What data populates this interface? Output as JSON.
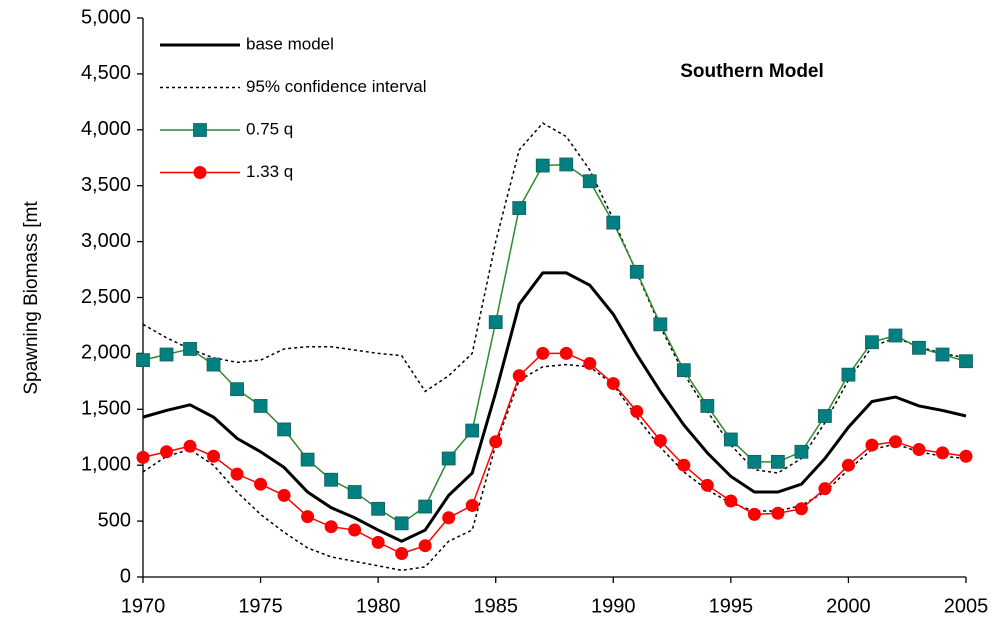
{
  "chart_data": {
    "type": "line",
    "title": "Southern Model",
    "y_label": "Spawning Biomass [mt",
    "x": [
      1970,
      1971,
      1972,
      1973,
      1974,
      1975,
      1976,
      1977,
      1978,
      1979,
      1980,
      1981,
      1982,
      1983,
      1984,
      1985,
      1986,
      1987,
      1988,
      1989,
      1990,
      1991,
      1992,
      1993,
      1994,
      1995,
      1996,
      1997,
      1998,
      1999,
      2000,
      2001,
      2002,
      2003,
      2004,
      2005
    ],
    "xlim": [
      1970,
      2005
    ],
    "xticks": [
      1970,
      1975,
      1980,
      1985,
      1990,
      1995,
      2000,
      2005
    ],
    "ylim": [
      0,
      5000
    ],
    "yticks": [
      0,
      500,
      {
        "value": 1000,
        "label": "1,000"
      },
      {
        "value": 1500,
        "label": "1,500"
      },
      {
        "value": 2000,
        "label": "2,000"
      },
      {
        "value": 2500,
        "label": "2,500"
      },
      {
        "value": 3000,
        "label": "3,000"
      },
      {
        "value": 3500,
        "label": "3,500"
      },
      {
        "value": 4000,
        "label": "4,000"
      },
      {
        "value": 4500,
        "label": "4,500"
      },
      {
        "value": 5000,
        "label": "5,000"
      }
    ],
    "legend": "upper left",
    "series": [
      {
        "name": "base model",
        "color": "#000000",
        "style": "solid",
        "marker": "none",
        "values": [
          1430,
          1490,
          1540,
          1430,
          1240,
          1120,
          980,
          760,
          620,
          530,
          420,
          320,
          420,
          730,
          930,
          1650,
          2440,
          2720,
          2720,
          2610,
          2350,
          1990,
          1660,
          1360,
          1110,
          900,
          760,
          760,
          830,
          1060,
          1340,
          1570,
          1610,
          1530,
          1490,
          1440
        ]
      },
      {
        "name": "95% confidence interval",
        "color": "#000000",
        "style": "dotted",
        "marker": "none",
        "high": [
          2260,
          2140,
          2040,
          1960,
          1920,
          1940,
          2040,
          2060,
          2060,
          2030,
          2000,
          1980,
          1660,
          1800,
          2000,
          3000,
          3820,
          4060,
          3940,
          3640,
          3200,
          2720,
          2240,
          1820,
          1480,
          1180,
          960,
          930,
          1060,
          1380,
          1760,
          2060,
          2140,
          2060,
          2000,
          1960
        ],
        "low": [
          940,
          1080,
          1140,
          1000,
          760,
          560,
          400,
          260,
          180,
          140,
          100,
          60,
          90,
          320,
          420,
          1180,
          1760,
          1880,
          1900,
          1880,
          1720,
          1430,
          1160,
          940,
          780,
          660,
          590,
          590,
          640,
          760,
          960,
          1140,
          1190,
          1120,
          1080,
          1060
        ]
      },
      {
        "name": "0.75 q",
        "color": "#2e8b2e",
        "marker_color": "#008080",
        "style": "solid",
        "marker": "square",
        "values": [
          1940,
          1990,
          2040,
          1900,
          1680,
          1530,
          1320,
          1050,
          870,
          760,
          610,
          480,
          630,
          1060,
          1310,
          2280,
          3300,
          3680,
          3690,
          3540,
          3170,
          2730,
          2260,
          1850,
          1530,
          1230,
          1030,
          1030,
          1120,
          1440,
          1810,
          2100,
          2160,
          2050,
          1990,
          1930
        ]
      },
      {
        "name": "1.33 q",
        "color": "#ff0000",
        "marker_color": "#ff0000",
        "style": "solid",
        "marker": "circle",
        "values": [
          1070,
          1120,
          1170,
          1080,
          920,
          830,
          730,
          540,
          450,
          420,
          310,
          210,
          280,
          530,
          640,
          1210,
          1800,
          2000,
          2000,
          1910,
          1730,
          1480,
          1220,
          1000,
          820,
          680,
          560,
          570,
          610,
          790,
          1000,
          1180,
          1210,
          1140,
          1110,
          1080
        ]
      }
    ]
  }
}
